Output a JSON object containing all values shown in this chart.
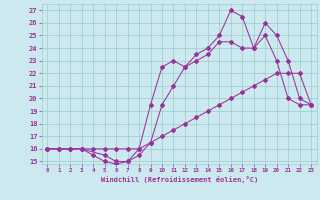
{
  "xlabel": "Windchill (Refroidissement éolien,°C)",
  "xlim": [
    -0.5,
    23.5
  ],
  "ylim": [
    14.8,
    27.5
  ],
  "yticks": [
    15,
    16,
    17,
    18,
    19,
    20,
    21,
    22,
    23,
    24,
    25,
    26,
    27
  ],
  "xticks": [
    0,
    1,
    2,
    3,
    4,
    5,
    6,
    7,
    8,
    9,
    10,
    11,
    12,
    13,
    14,
    15,
    16,
    17,
    18,
    19,
    20,
    21,
    22,
    23
  ],
  "background_color": "#cce9f0",
  "line_color": "#993399",
  "grid_color": "#99cccc",
  "lines": [
    {
      "x": [
        0,
        1,
        2,
        3,
        4,
        5,
        6,
        7,
        8,
        9,
        10,
        11,
        12,
        13,
        14,
        15,
        16,
        17,
        18,
        19,
        20,
        21,
        22,
        23
      ],
      "y": [
        16,
        16,
        16,
        16,
        16,
        16,
        16,
        16,
        16,
        16.5,
        17,
        17.5,
        18,
        18.5,
        19,
        19.5,
        20,
        20.5,
        21,
        21.5,
        22,
        22,
        22,
        19.5
      ]
    },
    {
      "x": [
        0,
        1,
        2,
        3,
        4,
        5,
        6,
        7,
        8,
        9,
        10,
        11,
        12,
        13,
        14,
        15,
        16,
        17,
        18,
        19,
        20,
        21,
        22,
        23
      ],
      "y": [
        16,
        16,
        16,
        16,
        15.5,
        15,
        14.8,
        15,
        15.5,
        16.5,
        19.5,
        21,
        22.5,
        23,
        23.5,
        24.5,
        24.5,
        24,
        24,
        25,
        23,
        20,
        19.5,
        19.5
      ]
    },
    {
      "x": [
        0,
        3,
        5,
        6,
        7,
        8,
        9,
        10,
        11,
        12,
        13,
        14,
        15,
        16,
        17,
        18,
        19,
        20,
        21,
        22,
        23
      ],
      "y": [
        16,
        16,
        15.5,
        15,
        15,
        16,
        19.5,
        22.5,
        23,
        22.5,
        23.5,
        24,
        25,
        27,
        26.5,
        24,
        26,
        25,
        23,
        20,
        19.5
      ]
    }
  ]
}
